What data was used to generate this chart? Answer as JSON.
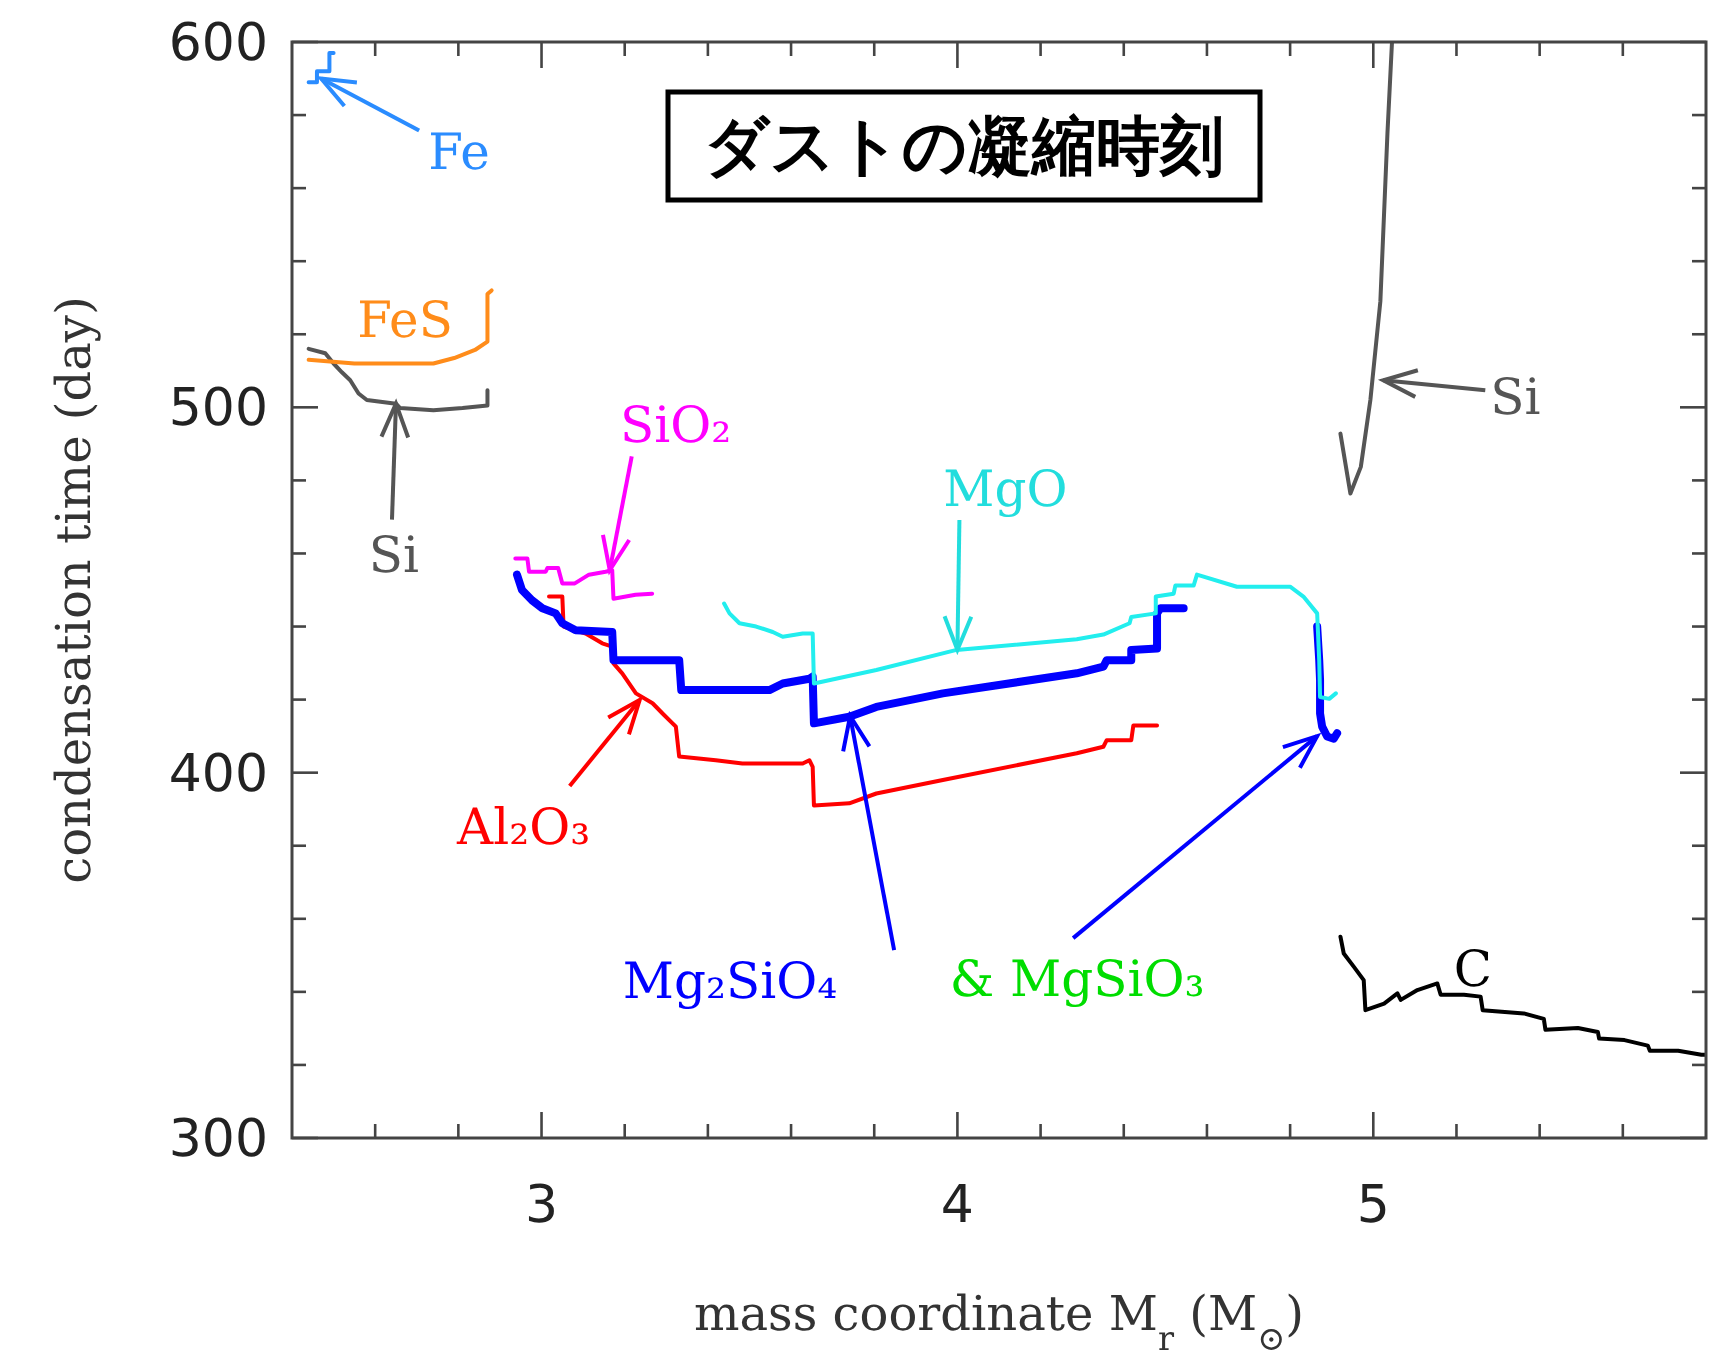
{
  "chart_data": {
    "type": "line",
    "title": "ダストの凝縮時刻",
    "xlabel": "mass coordinate M$_{r}$ (M$_{⊙}$)",
    "ylabel": "condensation time (day)",
    "xlim": [
      2.4,
      5.8
    ],
    "ylim": [
      300,
      600
    ],
    "xticks": [
      {
        "value": 2.6,
        "label": null
      },
      {
        "value": 2.8,
        "label": null
      },
      3,
      {
        "value": 3.2,
        "label": null
      },
      {
        "value": 3.4,
        "label": null
      },
      {
        "value": 3.6,
        "label": null
      },
      {
        "value": 3.8,
        "label": null
      },
      4,
      {
        "value": 4.2,
        "label": null
      },
      {
        "value": 4.4,
        "label": null
      },
      {
        "value": 4.6,
        "label": null
      },
      {
        "value": 4.8,
        "label": null
      },
      5,
      {
        "value": 5.2,
        "label": null
      },
      {
        "value": 5.4,
        "label": null
      },
      {
        "value": 5.6,
        "label": null
      }
    ],
    "yticks": [
      300,
      {
        "value": 320,
        "label": null
      },
      {
        "value": 340,
        "label": null
      },
      {
        "value": 360,
        "label": null
      },
      {
        "value": 380,
        "label": null
      },
      400,
      {
        "value": 420,
        "label": null
      },
      {
        "value": 440,
        "label": null
      },
      {
        "value": 460,
        "label": null
      },
      {
        "value": 480,
        "label": null
      },
      500,
      {
        "value": 520,
        "label": null
      },
      {
        "value": 540,
        "label": null
      },
      {
        "value": 560,
        "label": null
      },
      {
        "value": 580,
        "label": null
      },
      600
    ],
    "series": [
      {
        "color": "#555555",
        "x": [
          4.921,
          4.945,
          4.97,
          4.993,
          5.017,
          5.034,
          5.045
        ],
        "values": [
          492.8,
          476.4,
          483.7,
          502,
          529,
          575,
          600
        ]
      },
      {
        "color": "#2a8cff",
        "x": [
          2.44,
          2.46,
          2.46,
          2.49,
          2.49,
          2.5
        ],
        "values": [
          589,
          589,
          592,
          592,
          597,
          597
        ]
      },
      {
        "color": "#555555",
        "x": [
          2.44,
          2.48,
          2.5,
          2.52,
          2.54,
          2.56,
          2.58,
          2.65,
          2.66,
          2.74,
          2.81,
          2.87,
          2.87
        ],
        "values": [
          516,
          514.8,
          512,
          509.6,
          507.4,
          503.8,
          502,
          501,
          499.8,
          499.2,
          499.8,
          500.5,
          504.7
        ]
      },
      {
        "color": "#ff8c1a",
        "x": [
          2.44,
          2.55,
          2.66,
          2.74,
          2.79,
          2.84,
          2.87,
          2.87,
          2.88
        ],
        "values": [
          513,
          512,
          512,
          512,
          513.5,
          515.7,
          518,
          531,
          532
        ]
      },
      {
        "color": "#ff00ff",
        "x": [
          2.937,
          2.966,
          2.97,
          3.01,
          3.014,
          3.04,
          3.05,
          3.08,
          3.114,
          3.154,
          3.17,
          3.173,
          3.226,
          3.266
        ],
        "values": [
          458.6,
          458.6,
          455,
          455,
          456,
          456,
          451.8,
          451.8,
          454.2,
          455,
          455.4,
          447.6,
          448.7,
          449
        ]
      },
      {
        "color": "#ff0000",
        "x": [
          3.018,
          3.05,
          3.053,
          3.106,
          3.146,
          3.17,
          3.173,
          3.194,
          3.227,
          3.267,
          3.291,
          3.323,
          3.331,
          3.419,
          3.483,
          3.628,
          3.644,
          3.652,
          3.655,
          3.74,
          3.805,
          3.965,
          4.287,
          4.351,
          4.359,
          4.418,
          4.423,
          4.48
        ],
        "values": [
          448.2,
          448.2,
          440,
          438.1,
          435.4,
          434.5,
          429.9,
          427.2,
          421.7,
          419,
          416.2,
          412.6,
          404.4,
          403.4,
          402.5,
          402.5,
          403.4,
          401.6,
          391,
          391.6,
          394.3,
          398,
          405.3,
          407.1,
          408.9,
          408.9,
          412.9,
          412.9
        ]
      },
      {
        "color": "#0000ff",
        "x": [
          2.941,
          2.953,
          2.977,
          3.002,
          3.034,
          3.05,
          3.082,
          3.17,
          3.173,
          3.331,
          3.336,
          3.548,
          3.58,
          3.644,
          3.652,
          3.655,
          3.74,
          3.805,
          3.965,
          4.287,
          4.351,
          4.359,
          4.418,
          4.418,
          4.48,
          4.48,
          4.488,
          4.544,
          4.7,
          4.865,
          4.87,
          4.872,
          4.872,
          4.877,
          4.889,
          4.905,
          4.913
        ],
        "values": [
          454.2,
          450,
          447.2,
          445,
          443.6,
          440.9,
          439,
          438.5,
          430.8,
          430.8,
          422.6,
          422.6,
          424.4,
          425.7,
          426.3,
          413.5,
          415.3,
          418,
          421.7,
          427.2,
          429,
          430.8,
          430.8,
          433.6,
          434,
          443.6,
          445,
          445,
          null,
          440,
          430.8,
          425.3,
          416.2,
          412.6,
          409.9,
          409.3,
          410.8
        ]
      },
      {
        "color": "#22eeee",
        "x": [
          3.439,
          3.452,
          3.476,
          3.516,
          3.556,
          3.58,
          3.628,
          3.652,
          3.655,
          3.805,
          3.998,
          4.287,
          4.351,
          4.414,
          4.418,
          4.477,
          4.477,
          4.52,
          4.524,
          4.568,
          4.576,
          4.672,
          4.8,
          4.832,
          4.865,
          4.87,
          4.872,
          4.894,
          4.91
        ],
        "values": [
          446.3,
          443.6,
          440.9,
          440,
          438.5,
          437.2,
          438.1,
          438.1,
          424.4,
          428.1,
          433.6,
          436.5,
          437.8,
          440.9,
          442.6,
          443.6,
          448.2,
          449,
          451.2,
          451.2,
          454.2,
          450.9,
          450.9,
          448.2,
          443.6,
          430.8,
          420.7,
          420.2,
          421.7
        ]
      },
      {
        "color": "#000000",
        "x": [
          4.921,
          4.929,
          4.953,
          4.977,
          4.981,
          5.026,
          5.058,
          5.066,
          5.106,
          5.122,
          5.154,
          5.162,
          5.218,
          5.258,
          5.263,
          5.362,
          5.41,
          5.414,
          5.492,
          5.54,
          5.543,
          5.604,
          5.66,
          5.665,
          5.733,
          5.789,
          5.8
        ],
        "values": [
          355.1,
          350.5,
          346.9,
          343.2,
          335,
          336.8,
          339.6,
          337.8,
          340.5,
          341.1,
          342.3,
          339.2,
          339.2,
          338.7,
          335,
          334.1,
          332.6,
          329.6,
          330.1,
          329,
          327.2,
          326.8,
          325.3,
          323.9,
          323.9,
          322.8,
          322.8
        ]
      }
    ],
    "annotations": [
      {
        "text": "Fe",
        "x": 2.47,
        "y": 590
      },
      {
        "text": "FeS",
        "x": 2.72,
        "y": 512
      },
      {
        "text": "Si",
        "x": 2.65,
        "y": 501
      },
      {
        "text": "SiO₂",
        "x": 3.164,
        "y": 455.4
      },
      {
        "text": "MgO",
        "x": 4.0,
        "y": 433.6
      },
      {
        "text": "Si",
        "x": 5.024,
        "y": 507.4
      },
      {
        "text": "Al₂O₃",
        "x": 3.236,
        "y": 419.9
      },
      {
        "text": "Mg₂SiO₄",
        "x": 3.742,
        "y": 415.5
      },
      {
        "text": "& MgSiO₃",
        "x": 4.865,
        "y": 410
      },
      {
        "text": "C",
        "x": 5.22,
        "y": 339
      }
    ]
  }
}
